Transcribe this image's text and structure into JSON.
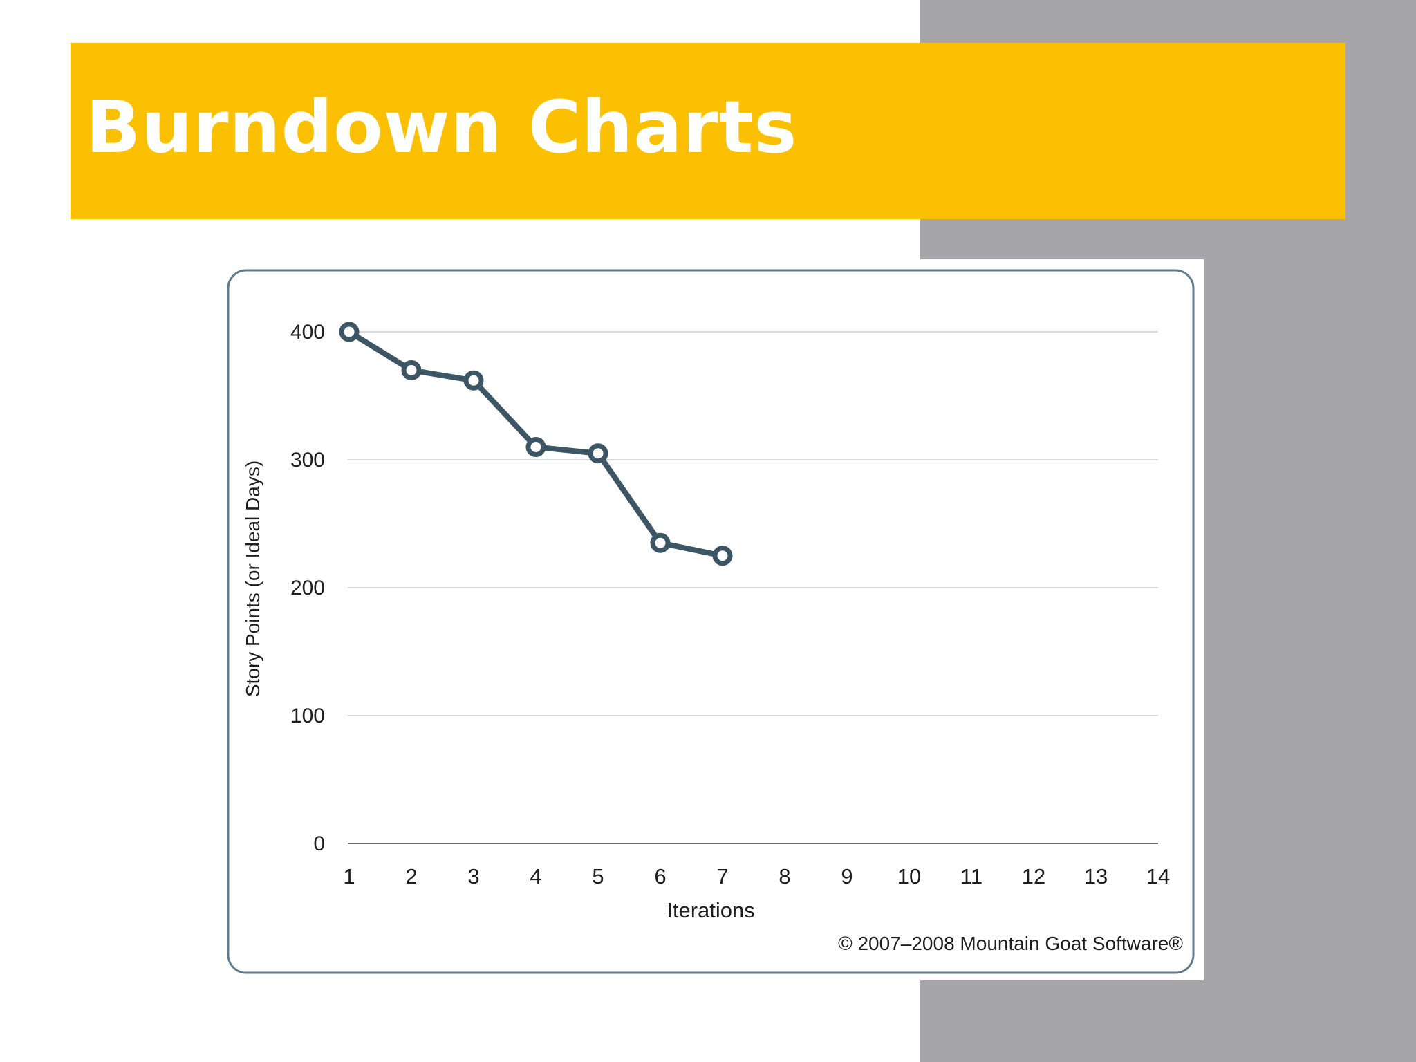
{
  "slide": {
    "title": "Burndown Charts"
  },
  "colors": {
    "title_band": "#fbc001",
    "title_text": "#ffffff",
    "side_panel": "#a6a5a7",
    "line": "#3d5665",
    "gridline": "#d9dbe0",
    "frame": "#5f7a8c"
  },
  "chart_data": {
    "type": "line",
    "title": "",
    "xlabel": "Iterations",
    "ylabel": "Story Points (or Ideal Days)",
    "x_ticks": [
      "1",
      "2",
      "3",
      "4",
      "5",
      "6",
      "7",
      "8",
      "9",
      "10",
      "11",
      "12",
      "13",
      "14"
    ],
    "y_ticks": [
      "0",
      "100",
      "200",
      "300",
      "400"
    ],
    "xlim": [
      1,
      14
    ],
    "ylim": [
      0,
      400
    ],
    "grid": true,
    "series": [
      {
        "x": [
          1,
          2,
          3,
          4,
          5,
          6,
          7
        ],
        "values": [
          400,
          370,
          362,
          310,
          305,
          235,
          225
        ]
      }
    ],
    "copyright": "© 2007–2008 Mountain Goat Software®"
  }
}
